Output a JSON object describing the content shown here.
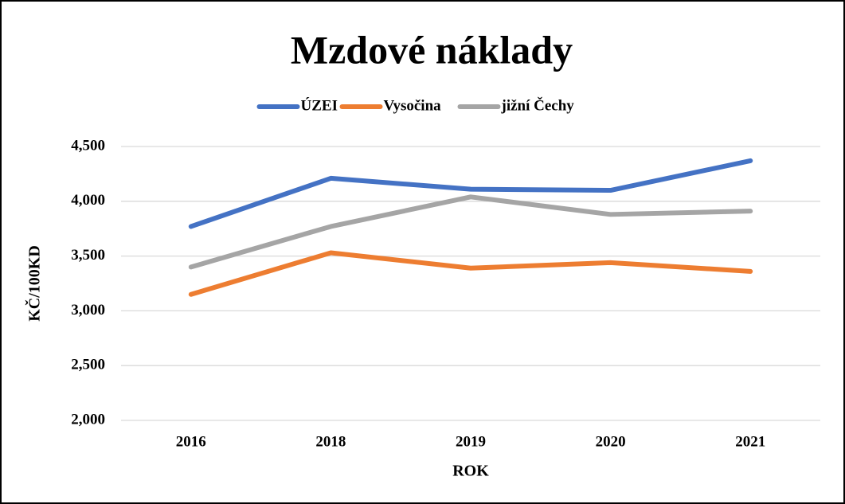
{
  "chart_data": {
    "type": "line",
    "title": "Mzdové náklady",
    "x_label": "ROK",
    "y_label": "KČ/100KD",
    "categories": [
      "2016",
      "2018",
      "2019",
      "2020",
      "2021"
    ],
    "series": [
      {
        "name": "ÚZEI",
        "color": "#4472c4",
        "values": [
          3770,
          4210,
          4110,
          4100,
          4370
        ]
      },
      {
        "name": "Vysočina",
        "color": "#ed7d31",
        "values": [
          3150,
          3530,
          3390,
          3440,
          3360
        ]
      },
      {
        "name": "jižní Čechy",
        "color": "#a5a5a5",
        "values": [
          3400,
          3770,
          4040,
          3880,
          3910
        ]
      }
    ],
    "ylim": [
      2000,
      4500
    ],
    "yticks": [
      {
        "value": 2000,
        "label": "2,000"
      },
      {
        "value": 2500,
        "label": "2,500"
      },
      {
        "value": 3000,
        "label": "3,000"
      },
      {
        "value": 3500,
        "label": "3,500"
      },
      {
        "value": 4000,
        "label": "4,000"
      },
      {
        "value": 4500,
        "label": "4,500"
      }
    ],
    "grid": true,
    "legend": "top"
  }
}
